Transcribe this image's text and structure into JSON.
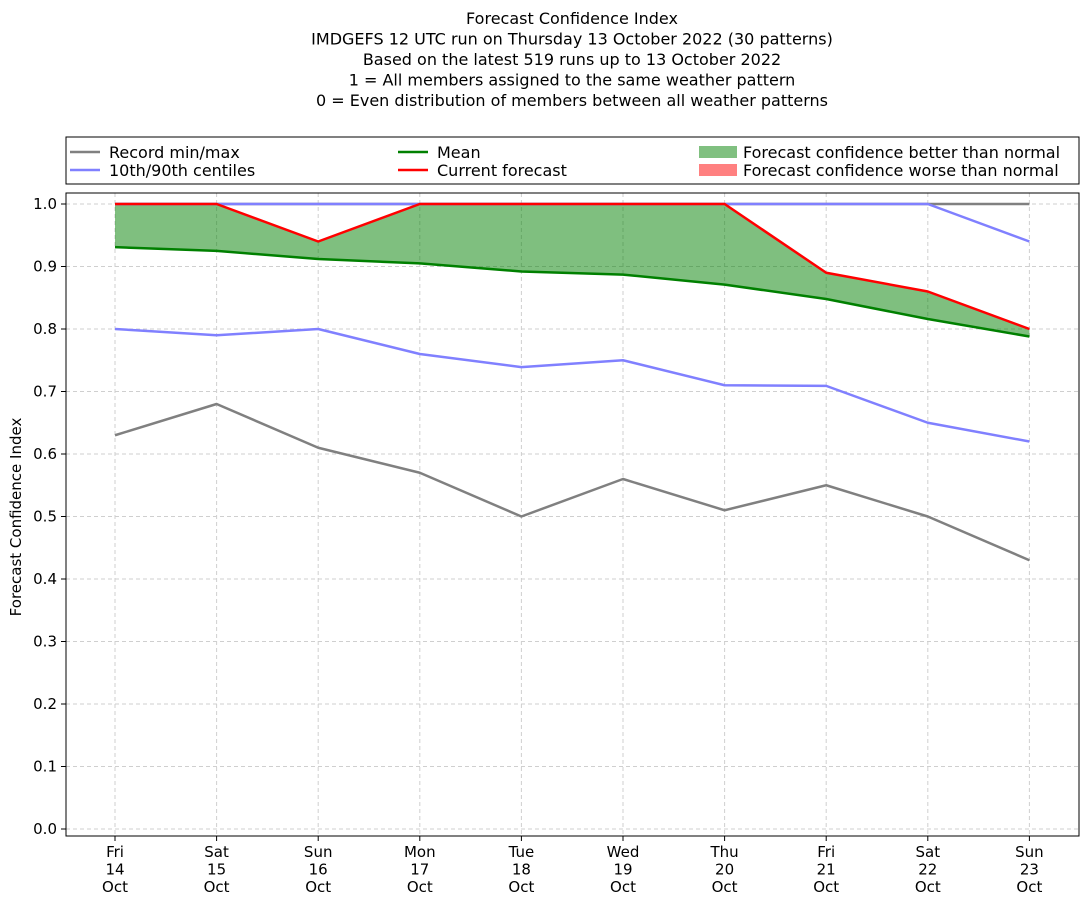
{
  "chart_data": {
    "type": "line",
    "title_lines": [
      "Forecast Confidence Index",
      "IMDGEFS 12 UTC run on Thursday 13 October 2022 (30 patterns)",
      "Based on the latest 519 runs up to 13 October 2022",
      "1 = All members assigned to the same weather pattern",
      "0 = Even distribution of members between all weather patterns"
    ],
    "ylabel": "Forecast Confidence Index",
    "ylim": [
      0.0,
      1.0
    ],
    "yticks": [
      "0.0",
      "0.1",
      "0.2",
      "0.3",
      "0.4",
      "0.5",
      "0.6",
      "0.7",
      "0.8",
      "0.9",
      "1.0"
    ],
    "grid": true,
    "legend_position": "top, above plot",
    "categories": [
      [
        "Fri",
        "14",
        "Oct"
      ],
      [
        "Sat",
        "15",
        "Oct"
      ],
      [
        "Sun",
        "16",
        "Oct"
      ],
      [
        "Mon",
        "17",
        "Oct"
      ],
      [
        "Tue",
        "18",
        "Oct"
      ],
      [
        "Wed",
        "19",
        "Oct"
      ],
      [
        "Thu",
        "20",
        "Oct"
      ],
      [
        "Fri",
        "21",
        "Oct"
      ],
      [
        "Sat",
        "22",
        "Oct"
      ],
      [
        "Sun",
        "23",
        "Oct"
      ]
    ],
    "series": [
      {
        "name": "Record min/max",
        "key": "record_min",
        "color": "#808080",
        "values": [
          0.63,
          0.68,
          0.61,
          0.57,
          0.5,
          0.56,
          0.51,
          0.55,
          0.5,
          0.43
        ]
      },
      {
        "name": "Record min/max",
        "key": "record_max",
        "color": "#808080",
        "values": [
          1.0,
          1.0,
          1.0,
          1.0,
          1.0,
          1.0,
          1.0,
          1.0,
          1.0,
          1.0
        ]
      },
      {
        "name": "10th/90th centiles",
        "key": "p10",
        "color": "#8080ff",
        "values": [
          0.8,
          0.79,
          0.8,
          0.76,
          0.739,
          0.75,
          0.71,
          0.709,
          0.65,
          0.62
        ]
      },
      {
        "name": "10th/90th centiles",
        "key": "p90",
        "color": "#8080ff",
        "values": [
          1.0,
          1.0,
          1.0,
          1.0,
          1.0,
          1.0,
          1.0,
          1.0,
          1.0,
          0.94
        ]
      },
      {
        "name": "Mean",
        "key": "mean",
        "color": "#008000",
        "values": [
          0.931,
          0.925,
          0.912,
          0.905,
          0.892,
          0.887,
          0.871,
          0.848,
          0.816,
          0.788
        ]
      },
      {
        "name": "Current forecast",
        "key": "current",
        "color": "#ff0000",
        "values": [
          1.0,
          1.0,
          0.94,
          1.0,
          1.0,
          1.0,
          1.0,
          0.89,
          0.86,
          0.8
        ]
      }
    ],
    "fills": {
      "better_color": "#008000",
      "worse_color": "#ff0000"
    },
    "legend": [
      {
        "label": "Record min/max",
        "kind": "line",
        "color": "#808080"
      },
      {
        "label": "10th/90th centiles",
        "kind": "line",
        "color": "#8080ff"
      },
      {
        "label": "Mean",
        "kind": "line",
        "color": "#008000"
      },
      {
        "label": "Current forecast",
        "kind": "line",
        "color": "#ff0000"
      },
      {
        "label": "Forecast confidence better than normal",
        "kind": "patch",
        "color": "#80c080"
      },
      {
        "label": "Forecast confidence worse than normal",
        "kind": "patch",
        "color": "#ff8080"
      }
    ]
  }
}
